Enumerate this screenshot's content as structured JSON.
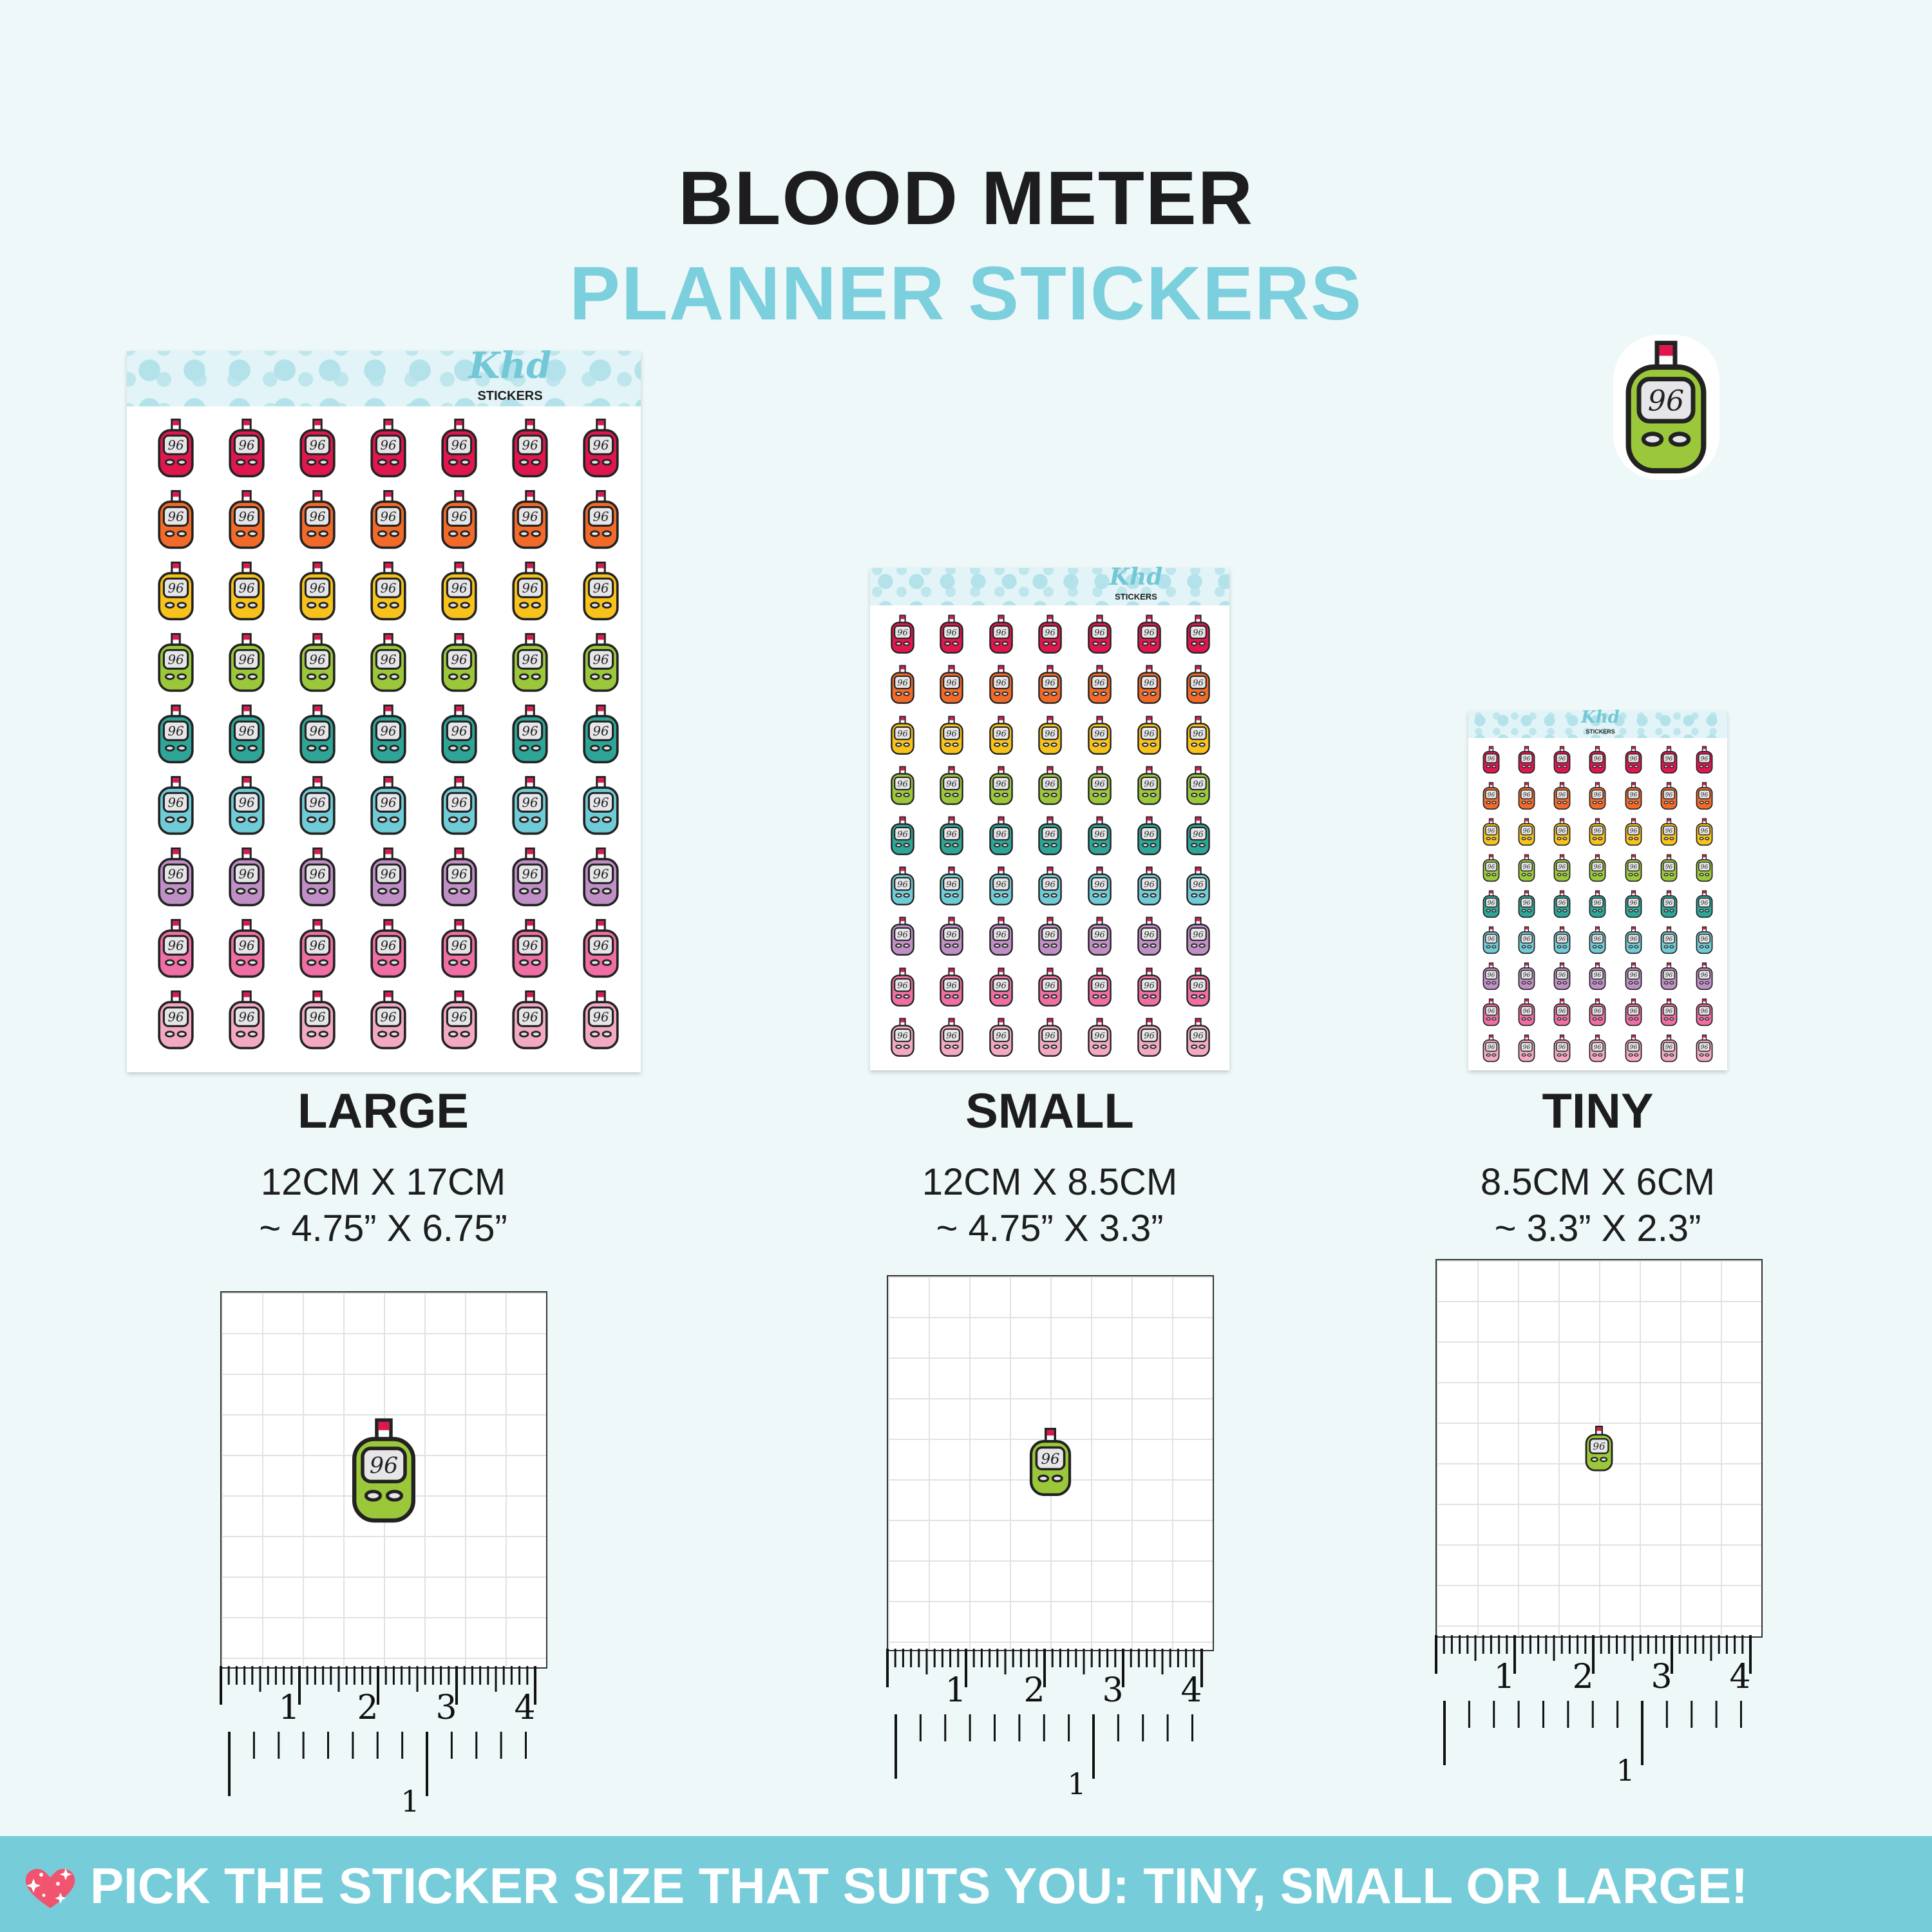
{
  "header": {
    "title": "BLOOD METER",
    "subtitle": "PLANNER STICKERS"
  },
  "brand": {
    "logo_script": "Khd",
    "logo_word": "STICKERS"
  },
  "sticker": {
    "reading": "96",
    "featured_color": "#9bc83a"
  },
  "colors": {
    "background": "#eef8f9",
    "accent": "#7ccfdc",
    "banner": "#76cdd9",
    "rows": [
      "#e0174f",
      "#f26a2a",
      "#f7c21b",
      "#9bc83a",
      "#2ea597",
      "#6fcbd6",
      "#c08fc6",
      "#ef6ea3",
      "#f4a9c3"
    ]
  },
  "sizes": [
    {
      "label": "LARGE",
      "metric": "12CM X 17CM",
      "imperial": "~ 4.75” X 6.75”"
    },
    {
      "label": "SMALL",
      "metric": "12CM X 8.5CM",
      "imperial": "~ 4.75” X 3.3”"
    },
    {
      "label": "TINY",
      "metric": "8.5CM X 6CM",
      "imperial": "~ 3.3” X 2.3”"
    }
  ],
  "ruler": {
    "cm_labels": [
      "1",
      "2",
      "3",
      "4"
    ],
    "inch_label": "1"
  },
  "banner": {
    "text": "PICK THE STICKER SIZE THAT SUITS YOU: TINY, SMALL OR LARGE!",
    "icon": "sparkle-heart-icon"
  }
}
